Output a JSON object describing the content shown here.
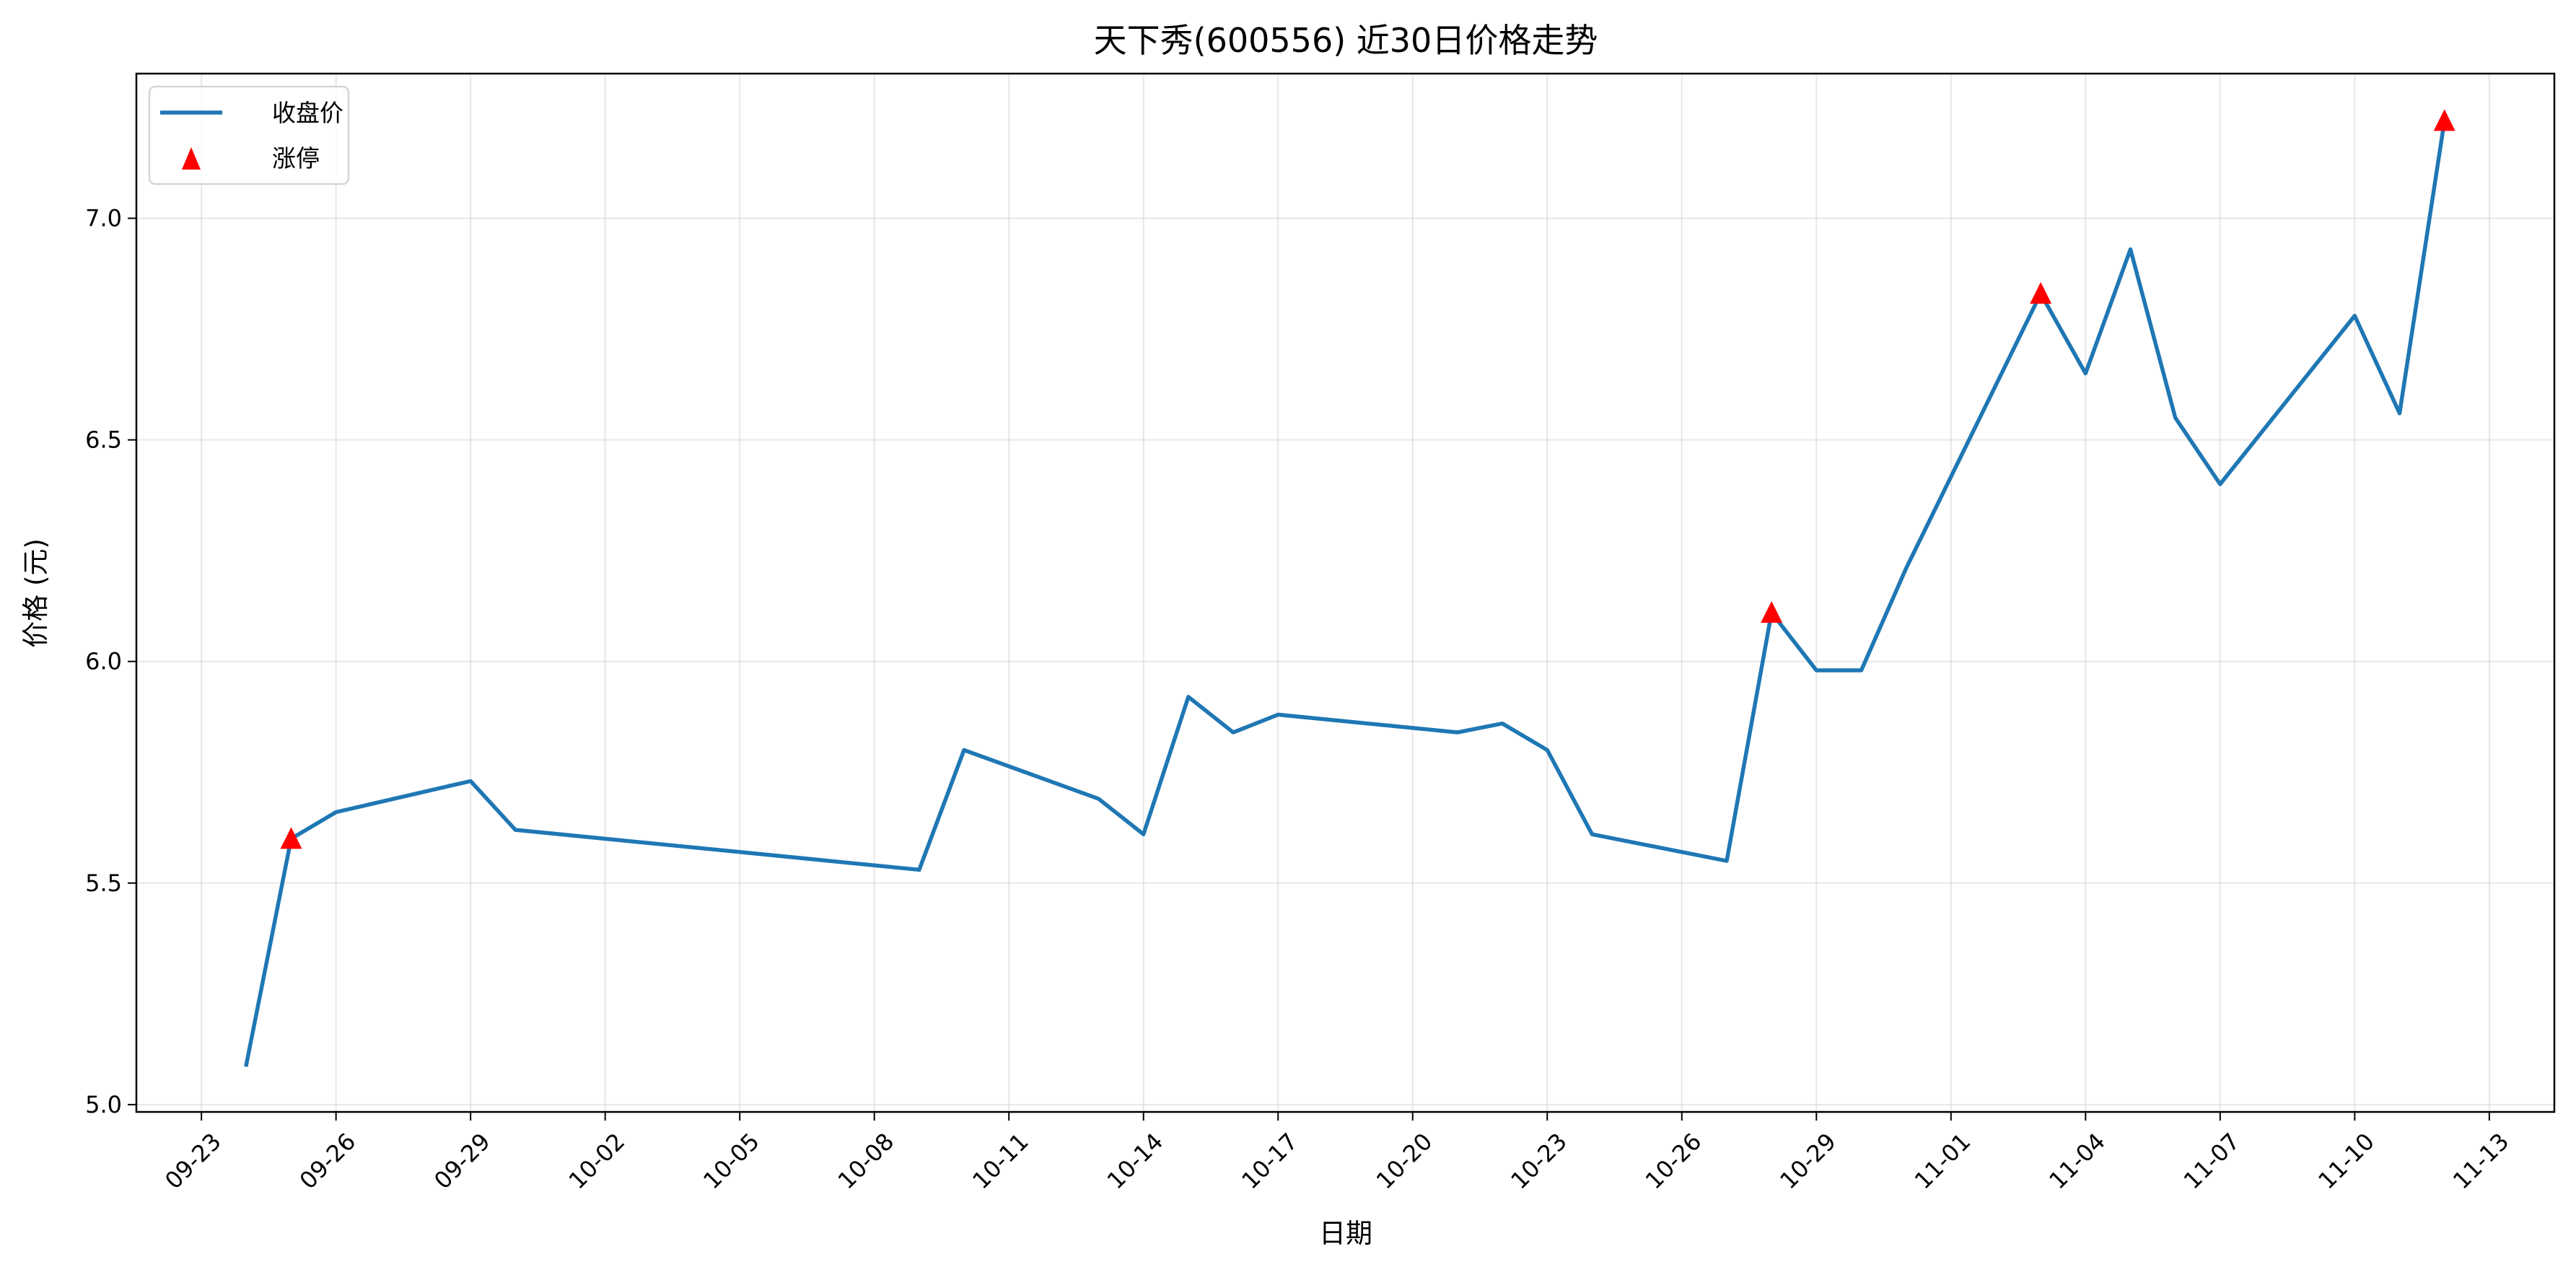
{
  "chart_data": {
    "type": "line",
    "title": "天下秀(600556) 近30日价格走势",
    "xlabel": "日期",
    "ylabel": "价格 (元)",
    "grid": true,
    "legend_placement": "upper-left",
    "x_tick_labels": [
      "09-23",
      "09-26",
      "09-29",
      "10-02",
      "10-05",
      "10-08",
      "10-11",
      "10-14",
      "10-17",
      "10-20",
      "10-23",
      "10-26",
      "10-29",
      "11-01",
      "11-04",
      "11-07",
      "11-10",
      "11-13"
    ],
    "y_ticks": [
      5.0,
      5.5,
      6.0,
      6.5,
      7.0
    ],
    "y_tick_labels": [
      "5.0",
      "5.5",
      "6.0",
      "6.5",
      "7.0"
    ],
    "series": [
      {
        "name": "收盘价",
        "color": "#1f77b4",
        "x": [
          "09-24",
          "09-25",
          "09-26",
          "09-29",
          "09-30",
          "10-09",
          "10-10",
          "10-13",
          "10-14",
          "10-15",
          "10-16",
          "10-17",
          "10-21",
          "10-22",
          "10-23",
          "10-24",
          "10-27",
          "10-28",
          "10-29",
          "10-30",
          "10-31",
          "11-03",
          "11-04",
          "11-05",
          "11-06",
          "11-07",
          "11-10",
          "11-11",
          "11-12"
        ],
        "y": [
          5.09,
          5.6,
          5.66,
          5.73,
          5.62,
          5.53,
          5.8,
          5.69,
          5.61,
          5.92,
          5.84,
          5.88,
          5.84,
          5.86,
          5.8,
          5.61,
          5.55,
          6.11,
          5.98,
          5.98,
          6.21,
          6.83,
          6.65,
          6.93,
          6.55,
          6.4,
          6.78,
          6.56,
          7.22
        ]
      },
      {
        "name": "涨停",
        "type": "scatter",
        "marker": "triangle",
        "color": "#ff0000",
        "x": [
          "09-25",
          "10-28",
          "11-03",
          "11-12"
        ],
        "y": [
          5.6,
          6.11,
          6.83,
          7.22
        ]
      }
    ]
  }
}
